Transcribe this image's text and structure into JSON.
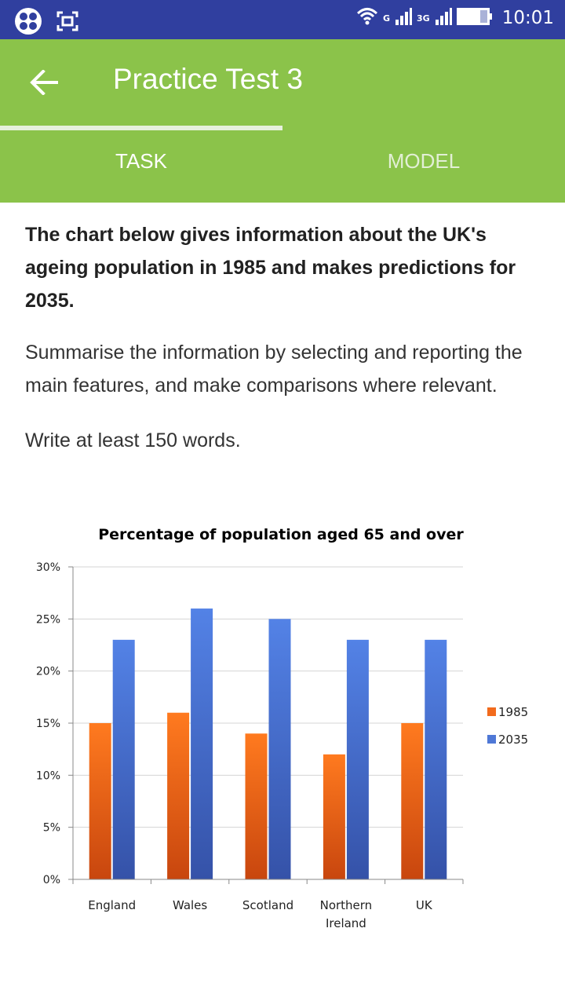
{
  "status_bar": {
    "net_g": "G",
    "net_3g": "3G",
    "time": "10:01"
  },
  "app_bar": {
    "title": "Practice Test 3"
  },
  "tabs": [
    {
      "label": "TASK"
    },
    {
      "label": "MODEL"
    }
  ],
  "task": {
    "heading": "The chart below gives information about the UK's ageing population in 1985 and makes predictions for 2035.",
    "instruction": "Summarise the information by selecting and reporting the main features, and make comparisons where relevant.",
    "word_count": "Write at least 150 words."
  },
  "colors": {
    "status_bar": "#303f9f",
    "app_bar": "#8bc34a",
    "series_1985": "#f26b1d",
    "series_2035": "#4f78d6"
  },
  "chart_data": {
    "type": "bar",
    "title": "Percentage of population aged 65 and over",
    "categories": [
      "England",
      "Wales",
      "Scotland",
      "Northern Ireland",
      "UK"
    ],
    "series": [
      {
        "name": "1985",
        "values": [
          15,
          16,
          14,
          12,
          15
        ]
      },
      {
        "name": "2035",
        "values": [
          23,
          26,
          25,
          23,
          23
        ]
      }
    ],
    "ylim": [
      0,
      30
    ],
    "yticks": [
      "0%",
      "5%",
      "10%",
      "15%",
      "20%",
      "25%",
      "30%"
    ],
    "grid": true,
    "legend": "right"
  }
}
